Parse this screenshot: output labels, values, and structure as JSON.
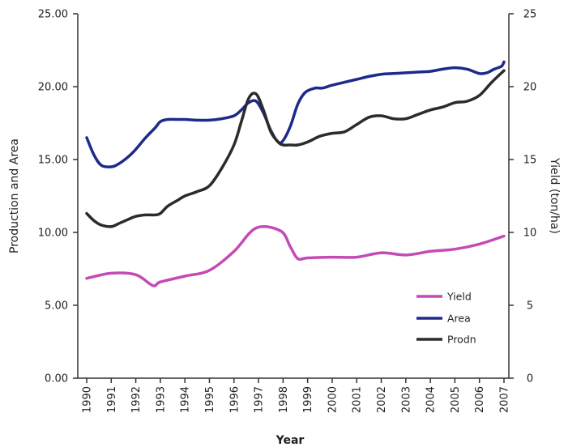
{
  "chart_data": {
    "type": "line",
    "xlabel": "Year",
    "ylabel_left": "Production and Area",
    "ylabel_right": "Yield (ton/ha)",
    "x_ticks": [
      "1990",
      "1991",
      "1992",
      "1993",
      "1994",
      "1995",
      "1996",
      "1997",
      "1998",
      "1999",
      "2000",
      "2001",
      "2002",
      "2003",
      "2004",
      "2005",
      "2006",
      "2007"
    ],
    "x_range": [
      1990,
      2007
    ],
    "y_left_ticks": [
      "0.00",
      "5.00",
      "10.00",
      "15.00",
      "20.00",
      "25.00"
    ],
    "y_left_range": [
      0,
      25
    ],
    "y_right_ticks": [
      "0",
      "5",
      "10",
      "15",
      "20",
      "25"
    ],
    "y_right_range": [
      0,
      25
    ],
    "grid": false,
    "legend_position": "bottom-right",
    "series": [
      {
        "name": "Yield",
        "color": "#c44bb5",
        "axis": "right",
        "x": [
          1990,
          1991,
          1992,
          1992.7,
          1993,
          1994,
          1995,
          1996,
          1996.9,
          1997.9,
          1998.3,
          1998.6,
          1999,
          2000,
          2001,
          2002,
          2003,
          2004,
          2005,
          2006,
          2007
        ],
        "values": [
          6.85,
          7.2,
          7.1,
          6.35,
          6.6,
          7.0,
          7.4,
          8.7,
          10.3,
          10.1,
          9.0,
          8.2,
          8.25,
          8.3,
          8.3,
          8.6,
          8.45,
          8.7,
          8.85,
          9.2,
          9.75
        ]
      },
      {
        "name": "Area",
        "color": "#1d2a8a",
        "axis": "left",
        "x": [
          1990,
          1990.3,
          1990.6,
          1991,
          1991.3,
          1991.7,
          1992,
          1992.4,
          1992.8,
          1993,
          1993.3,
          1993.7,
          1994,
          1994.5,
          1995,
          1995.5,
          1996,
          1996.3,
          1996.6,
          1996.9,
          1997.2,
          1997.5,
          1997.8,
          1998,
          1998.3,
          1998.6,
          1998.9,
          1999.3,
          1999.6,
          2000,
          2000.5,
          2001,
          2001.5,
          2002,
          2002.5,
          2003,
          2003.5,
          2004,
          2004.5,
          2005,
          2005.5,
          2006,
          2006.3,
          2006.6,
          2006.9,
          2007
        ],
        "values": [
          16.5,
          15.3,
          14.6,
          14.5,
          14.7,
          15.2,
          15.7,
          16.5,
          17.2,
          17.6,
          17.75,
          17.75,
          17.75,
          17.7,
          17.7,
          17.8,
          18.0,
          18.4,
          18.9,
          19.0,
          18.2,
          17.0,
          16.2,
          16.3,
          17.3,
          18.8,
          19.6,
          19.9,
          19.9,
          20.1,
          20.3,
          20.5,
          20.7,
          20.85,
          20.9,
          20.95,
          21.0,
          21.05,
          21.2,
          21.3,
          21.2,
          20.9,
          20.95,
          21.2,
          21.4,
          21.7
        ]
      },
      {
        "name": "Prodn",
        "color": "#2b2b2b",
        "axis": "left",
        "x": [
          1990,
          1990.3,
          1990.6,
          1991,
          1991.3,
          1991.7,
          1992,
          1992.4,
          1992.8,
          1993,
          1993.3,
          1993.7,
          1994,
          1994.5,
          1995,
          1995.5,
          1996,
          1996.3,
          1996.6,
          1996.9,
          1997.2,
          1997.5,
          1997.8,
          1998,
          1998.3,
          1998.6,
          1999,
          1999.5,
          2000,
          2000.5,
          2001,
          2001.5,
          2002,
          2002.5,
          2003,
          2003.5,
          2004,
          2004.5,
          2005,
          2005.5,
          2006,
          2006.5,
          2007
        ],
        "values": [
          11.3,
          10.8,
          10.5,
          10.4,
          10.6,
          10.9,
          11.1,
          11.2,
          11.2,
          11.3,
          11.8,
          12.2,
          12.5,
          12.8,
          13.2,
          14.4,
          16.0,
          17.6,
          19.2,
          19.5,
          18.4,
          16.9,
          16.2,
          16.0,
          16.0,
          16.0,
          16.2,
          16.6,
          16.8,
          16.9,
          17.4,
          17.9,
          18.0,
          17.8,
          17.8,
          18.1,
          18.4,
          18.6,
          18.9,
          19.0,
          19.4,
          20.3,
          21.1
        ]
      }
    ]
  }
}
